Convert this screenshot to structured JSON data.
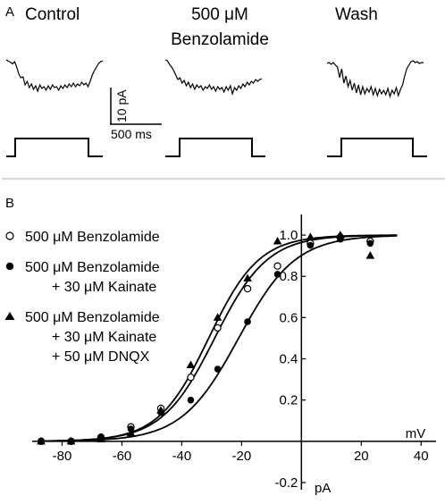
{
  "panel_a": {
    "label": "A",
    "conditions": [
      {
        "line1": "Control",
        "line2": ""
      },
      {
        "line1": "500 μM",
        "line2": "Benzolamide"
      },
      {
        "line1": "Wash",
        "line2": ""
      }
    ],
    "scale_bar": {
      "vertical": "10 pA",
      "horizontal": "500 ms"
    }
  },
  "panel_b": {
    "label": "B",
    "legend": [
      {
        "marker": "open-circle",
        "lines": [
          "500 μM Benzolamide"
        ]
      },
      {
        "marker": "filled-circle",
        "lines": [
          "500 μM Benzolamide",
          "+ 30 μM Kainate"
        ]
      },
      {
        "marker": "filled-triangle",
        "lines": [
          "500 μM Benzolamide",
          "+ 30 μM Kainate",
          "+ 50 μM DNQX"
        ]
      }
    ]
  },
  "chart_data": {
    "type": "scatter",
    "xlabel": "mV",
    "ylabel": "pA",
    "xlim": [
      -90,
      45
    ],
    "ylim": [
      -0.2,
      1.1
    ],
    "x_ticks": [
      -80,
      -60,
      -40,
      -20,
      0,
      20,
      40
    ],
    "x_tick_labels": [
      "-80",
      "-60",
      "-40",
      "-20",
      "",
      "20",
      "40"
    ],
    "y_ticks": [
      -0.2,
      0.2,
      0.4,
      0.6,
      0.8,
      1.0
    ],
    "y_tick_labels": [
      "-0.2",
      "0.2",
      "0.4",
      "0.6",
      "0.8",
      "1.0"
    ],
    "series": [
      {
        "marker": "open-circle",
        "x": [
          -87,
          -77,
          -67,
          -57,
          -47,
          -37,
          -28,
          -18,
          -8,
          3,
          13,
          23
        ],
        "y": [
          0.0,
          0.0,
          0.02,
          0.07,
          0.16,
          0.31,
          0.55,
          0.74,
          0.85,
          0.96,
          0.99,
          0.97
        ],
        "fit": {
          "v_half": -29,
          "slope": 8.8
        }
      },
      {
        "marker": "filled-circle",
        "x": [
          -87,
          -77,
          -67,
          -57,
          -47,
          -37,
          -28,
          -18,
          -8,
          3,
          13,
          23
        ],
        "y": [
          0.0,
          0.0,
          0.02,
          0.06,
          0.14,
          0.2,
          0.35,
          0.58,
          0.81,
          0.95,
          0.98,
          0.96
        ],
        "fit": {
          "v_half": -21,
          "slope": 9.5
        }
      },
      {
        "marker": "filled-triangle",
        "x": [
          -87,
          -77,
          -67,
          -57,
          -47,
          -37,
          -28,
          -18,
          -8,
          3,
          13,
          23
        ],
        "y": [
          0.0,
          0.0,
          0.01,
          0.04,
          0.15,
          0.37,
          0.6,
          0.79,
          0.97,
          0.99,
          1.0,
          0.9
        ],
        "fit": {
          "v_half": -31,
          "slope": 8.4
        }
      }
    ]
  },
  "traces": [
    {
      "y": [
        32.0,
        33.5,
        34.5,
        36.5,
        34.0,
        40.0,
        48.0,
        52.0,
        51.0,
        60.0,
        56.0,
        63.0,
        59.0,
        65.0,
        61.0,
        67.0,
        60.0,
        64.0,
        62.0,
        66.0,
        61.0,
        65.0,
        60.0,
        63.0,
        62.0,
        66.0,
        61.0,
        64.0,
        60.0,
        63.0,
        59.0,
        62.0,
        58.0,
        62.0,
        59.0,
        61.0,
        57.0,
        60.0,
        58.0,
        62.0,
        56.0,
        49.0,
        44.0,
        40.0,
        36.0,
        34.0,
        33.0
      ]
    },
    {
      "y": [
        32.0,
        33.0,
        37.0,
        40.0,
        44.0,
        49.0,
        54.0,
        52.0,
        58.0,
        55.0,
        61.0,
        57.0,
        63.0,
        59.0,
        65.0,
        60.0,
        63.0,
        61.0,
        66.0,
        62.0,
        64.0,
        60.0,
        65.0,
        62.0,
        67.0,
        62.0,
        65.0,
        63.0,
        68.0,
        62.0,
        66.0,
        61.0,
        70.0,
        63.0,
        66.0,
        61.0,
        64.0,
        59.0,
        62.0,
        57.0,
        60.0,
        56.0,
        58.0,
        54.0,
        56.0,
        54.0,
        53.0
      ]
    },
    {
      "y": [
        36.0,
        35.0,
        37.0,
        35.0,
        38.0,
        40.0,
        52.0,
        42.0,
        58.0,
        50.0,
        62.0,
        55.0,
        66.0,
        58.0,
        69.0,
        60.0,
        71.0,
        62.0,
        70.0,
        64.0,
        68.0,
        62.0,
        71.0,
        64.0,
        72.0,
        65.0,
        70.0,
        66.0,
        71.0,
        64.0,
        73.0,
        66.0,
        70.0,
        63.0,
        72.0,
        65.0,
        60.0,
        50.0,
        42.0,
        38.0,
        34.0,
        33.0,
        35.0,
        34.0,
        36.0,
        35.0,
        35.0
      ]
    }
  ]
}
